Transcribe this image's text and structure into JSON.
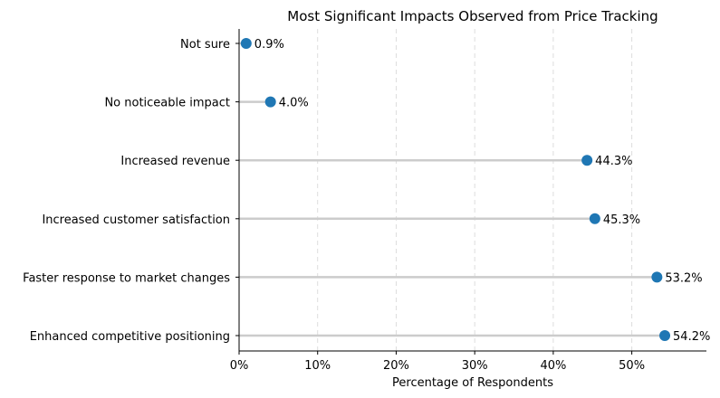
{
  "chart_data": {
    "type": "lollipop",
    "title": "Most Significant Impacts Observed from Price Tracking",
    "xlabel": "Percentage of Respondents",
    "ylabel": "",
    "xlim": [
      0,
      59.5
    ],
    "xticks": [
      0,
      10,
      20,
      30,
      40,
      50
    ],
    "xtick_labels": [
      "0%",
      "10%",
      "20%",
      "30%",
      "40%",
      "50%"
    ],
    "grid": "x-dashed",
    "categories": [
      "Not sure",
      "No noticeable impact",
      "Increased revenue",
      "Increased customer satisfaction",
      "Faster response to market changes",
      "Enhanced competitive positioning"
    ],
    "values": [
      0.9,
      4.0,
      44.3,
      45.3,
      53.2,
      54.2
    ],
    "value_labels": [
      "0.9%",
      "4.0%",
      "44.3%",
      "45.3%",
      "53.2%",
      "54.2%"
    ],
    "colors": {
      "marker": "#1f77b4",
      "stem": "#cccccc",
      "grid": "#dddddd",
      "axis": "#000000"
    }
  }
}
